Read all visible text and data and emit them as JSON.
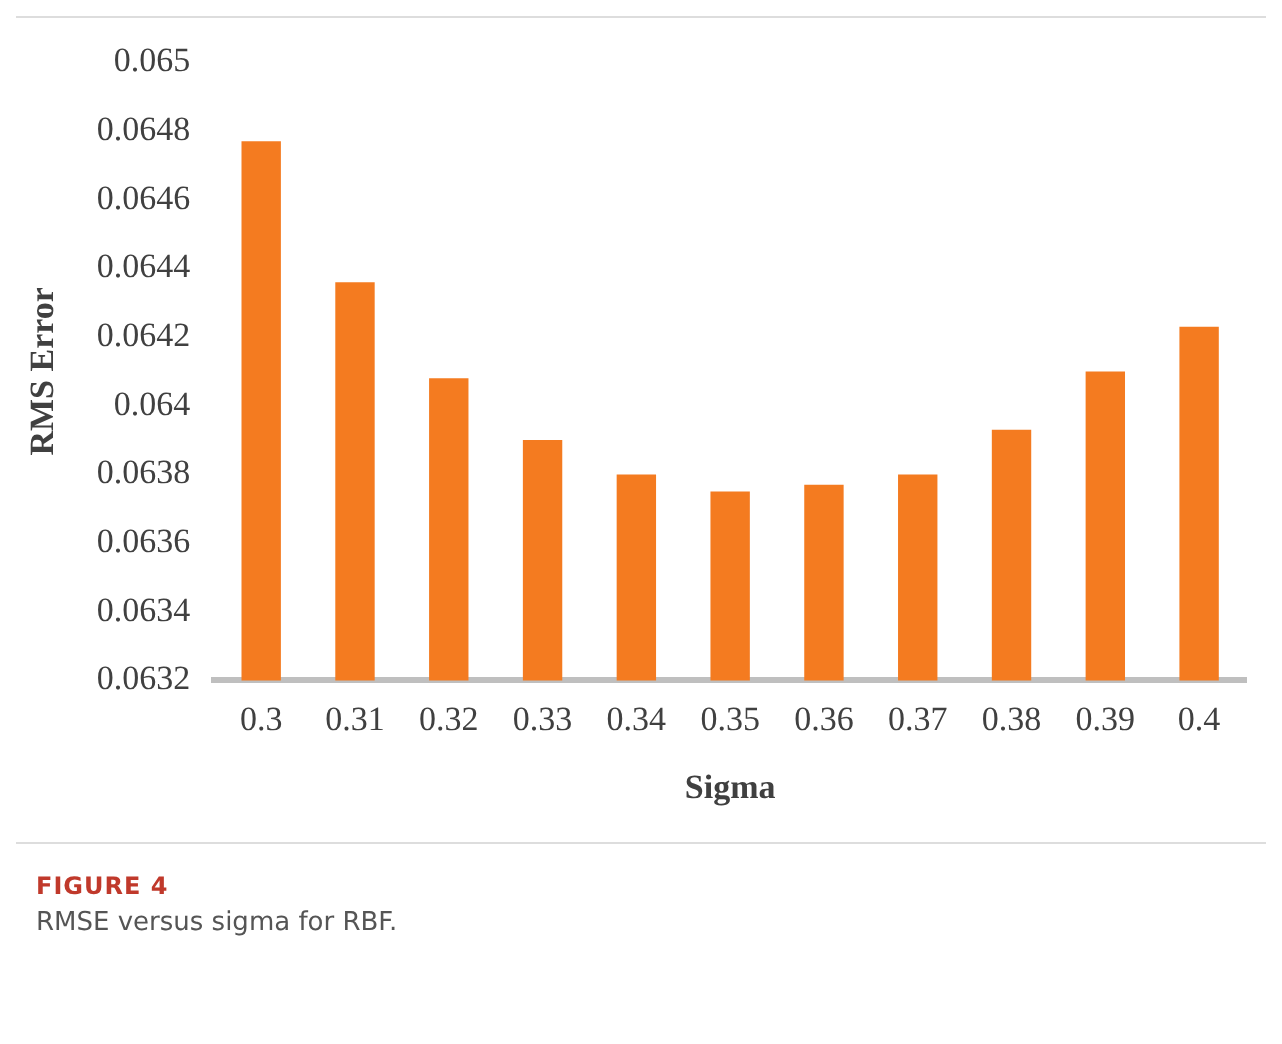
{
  "chart_data": {
    "type": "bar",
    "xlabel": "Sigma",
    "ylabel": "RMS Error",
    "categories": [
      "0.3",
      "0.31",
      "0.32",
      "0.33",
      "0.34",
      "0.35",
      "0.36",
      "0.37",
      "0.38",
      "0.39",
      "0.4"
    ],
    "values": [
      0.06477,
      0.06436,
      0.06408,
      0.0639,
      0.0638,
      0.06375,
      0.06377,
      0.0638,
      0.06393,
      0.0641,
      0.06423
    ],
    "color": "#f47b20",
    "ylim": [
      0.0632,
      0.065
    ],
    "yticks": [
      0.0632,
      0.0634,
      0.0636,
      0.0638,
      0.064,
      0.0642,
      0.0644,
      0.0646,
      0.0648,
      0.065
    ],
    "grid": false,
    "legend": false,
    "annotations": [
      "FIGURE 4",
      "RMSE versus sigma for RBF."
    ]
  }
}
